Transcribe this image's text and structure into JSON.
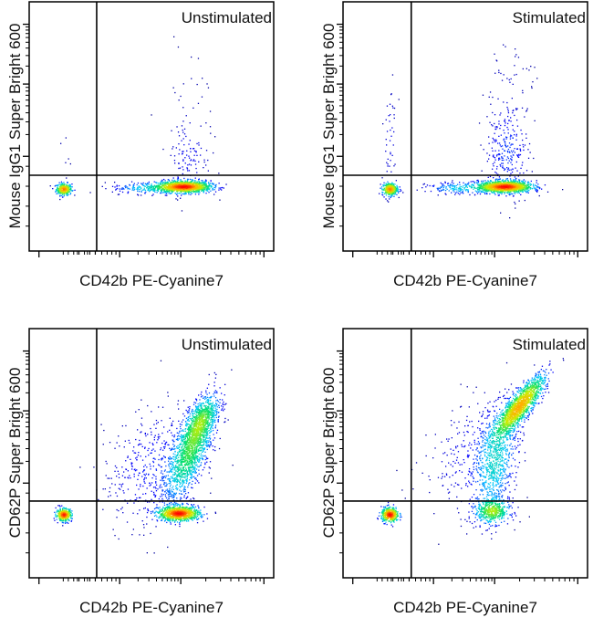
{
  "chart_data": [
    {
      "type": "scatter",
      "subtype": "flow-cytometry-density-dot-plot",
      "title": "Unstimulated",
      "xlabel": "CD42b PE-Cyanine7",
      "ylabel": "Mouse IgG1 Super Bright 600",
      "xscale": "biexponential",
      "yscale": "biexponential",
      "xlim": [
        0,
        100
      ],
      "ylim": [
        0,
        100
      ],
      "gate": {
        "x": 27.6,
        "y": 30.4
      },
      "colormap": [
        "#00008b",
        "#0000ff",
        "#00c8ff",
        "#00e070",
        "#c8f000",
        "#ffb000",
        "#ff0000"
      ],
      "populations": [
        {
          "x": 14,
          "y": 25,
          "sx": 1.6,
          "sy": 1.2,
          "rho": 0,
          "n": 300
        },
        {
          "x": 63,
          "y": 26,
          "sx": 5.5,
          "sy": 1.2,
          "rho": 0,
          "n": 1300
        },
        {
          "x": 48,
          "y": 25.5,
          "sx": 7,
          "sy": 1.2,
          "rho": 0,
          "n": 180
        },
        {
          "x": 65,
          "y": 38,
          "sx": 4.5,
          "sy": 8,
          "rho": 0,
          "n": 110
        },
        {
          "x": 66,
          "y": 60,
          "sx": 5,
          "sy": 12,
          "rho": 0,
          "n": 25
        },
        {
          "x": 14,
          "y": 40,
          "sx": 2,
          "sy": 8,
          "rho": 0,
          "n": 6
        }
      ]
    },
    {
      "type": "scatter",
      "subtype": "flow-cytometry-density-dot-plot",
      "title": "Stimulated",
      "xlabel": "CD42b PE-Cyanine7",
      "ylabel": "Mouse IgG1 Super Bright 600",
      "xscale": "biexponential",
      "yscale": "biexponential",
      "xlim": [
        0,
        100
      ],
      "ylim": [
        0,
        100
      ],
      "gate": {
        "x": 27.9,
        "y": 30.4
      },
      "colormap": [
        "#00008b",
        "#0000ff",
        "#00c8ff",
        "#00e070",
        "#c8f000",
        "#ffb000",
        "#ff0000"
      ],
      "populations": [
        {
          "x": 19,
          "y": 25,
          "sx": 1.6,
          "sy": 1.3,
          "rho": 0,
          "n": 320
        },
        {
          "x": 66,
          "y": 26,
          "sx": 5.5,
          "sy": 1.2,
          "rho": 0,
          "n": 1300
        },
        {
          "x": 48,
          "y": 25.5,
          "sx": 7,
          "sy": 1.2,
          "rho": 0,
          "n": 180
        },
        {
          "x": 67,
          "y": 40,
          "sx": 4.5,
          "sy": 9,
          "rho": 0,
          "n": 260
        },
        {
          "x": 67,
          "y": 65,
          "sx": 5.5,
          "sy": 12,
          "rho": 0,
          "n": 60
        },
        {
          "x": 19,
          "y": 45,
          "sx": 1.5,
          "sy": 12,
          "rho": 0,
          "n": 45
        }
      ]
    },
    {
      "type": "scatter",
      "subtype": "flow-cytometry-density-dot-plot",
      "title": "Unstimulated",
      "xlabel": "CD42b PE-Cyanine7",
      "ylabel": "CD62P Super Bright 600",
      "xscale": "biexponential",
      "yscale": "biexponential",
      "xlim": [
        0,
        100
      ],
      "ylim": [
        0,
        100
      ],
      "gate": {
        "x": 27.6,
        "y": 30.8
      },
      "colormap": [
        "#00008b",
        "#0000ff",
        "#00c8ff",
        "#00e070",
        "#c8f000",
        "#ffb000",
        "#ff0000"
      ],
      "populations": [
        {
          "x": 14,
          "y": 25.5,
          "sx": 1.6,
          "sy": 1.3,
          "rho": 0,
          "n": 320
        },
        {
          "x": 61,
          "y": 26,
          "sx": 4.2,
          "sy": 1.5,
          "rho": 0,
          "n": 1000
        },
        {
          "x": 66,
          "y": 52,
          "sx": 5,
          "sy": 10,
          "rho": 0.7,
          "n": 1500
        },
        {
          "x": 70,
          "y": 63,
          "sx": 3.5,
          "sy": 5,
          "rho": 0.6,
          "n": 500
        },
        {
          "x": 50,
          "y": 45,
          "sx": 10,
          "sy": 12,
          "rho": 0.3,
          "n": 450
        }
      ]
    },
    {
      "type": "scatter",
      "subtype": "flow-cytometry-density-dot-plot",
      "title": "Stimulated",
      "xlabel": "CD42b PE-Cyanine7",
      "ylabel": "CD62P Super Bright 600",
      "xscale": "biexponential",
      "yscale": "biexponential",
      "xlim": [
        0,
        100
      ],
      "ylim": [
        0,
        100
      ],
      "gate": {
        "x": 27.9,
        "y": 30.8
      },
      "colormap": [
        "#00008b",
        "#0000ff",
        "#00c8ff",
        "#00e070",
        "#c8f000",
        "#ffb000",
        "#ff0000"
      ],
      "populations": [
        {
          "x": 19,
          "y": 25.5,
          "sx": 1.8,
          "sy": 1.5,
          "rho": 0,
          "n": 380
        },
        {
          "x": 61,
          "y": 27,
          "sx": 3.5,
          "sy": 2.5,
          "rho": 0,
          "n": 450
        },
        {
          "x": 72,
          "y": 69,
          "sx": 5,
          "sy": 6,
          "rho": 0.85,
          "n": 1500
        },
        {
          "x": 62,
          "y": 47,
          "sx": 4.5,
          "sy": 11,
          "rho": 0.4,
          "n": 800
        },
        {
          "x": 52,
          "y": 50,
          "sx": 10,
          "sy": 12,
          "rho": 0.3,
          "n": 250
        }
      ]
    }
  ],
  "axes": {
    "x_major_ticks": [
      4,
      37,
      62,
      96
    ],
    "y_major_ticks": [
      38,
      67,
      91
    ]
  }
}
